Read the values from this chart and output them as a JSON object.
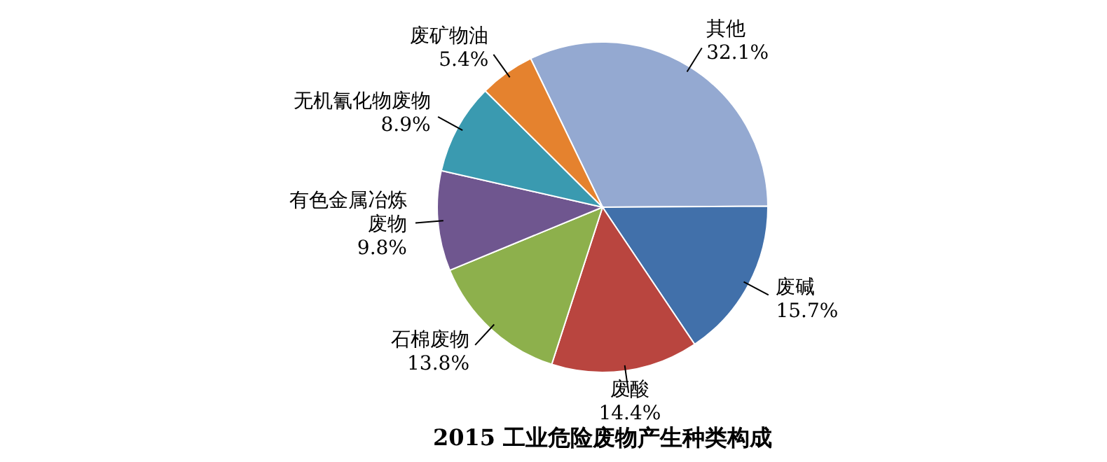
{
  "chart_data": {
    "type": "pie",
    "title": "2015 工业危险废物产生种类构成",
    "categories": [
      "其他",
      "废碱",
      "废酸",
      "石棉废物",
      "有色金属冶炼废物",
      "无机氰化物废物",
      "废矿物油"
    ],
    "values": [
      32.1,
      15.7,
      14.4,
      13.8,
      9.8,
      8.9,
      5.4
    ],
    "colors": [
      "#94a9d1",
      "#4170aa",
      "#b9453f",
      "#8db04c",
      "#6f568f",
      "#3a9ab0",
      "#e5822e"
    ],
    "value_labels": [
      "32.1%",
      "15.7%",
      "14.4%",
      "13.8%",
      "9.8%",
      "8.9%",
      "5.4%"
    ]
  }
}
